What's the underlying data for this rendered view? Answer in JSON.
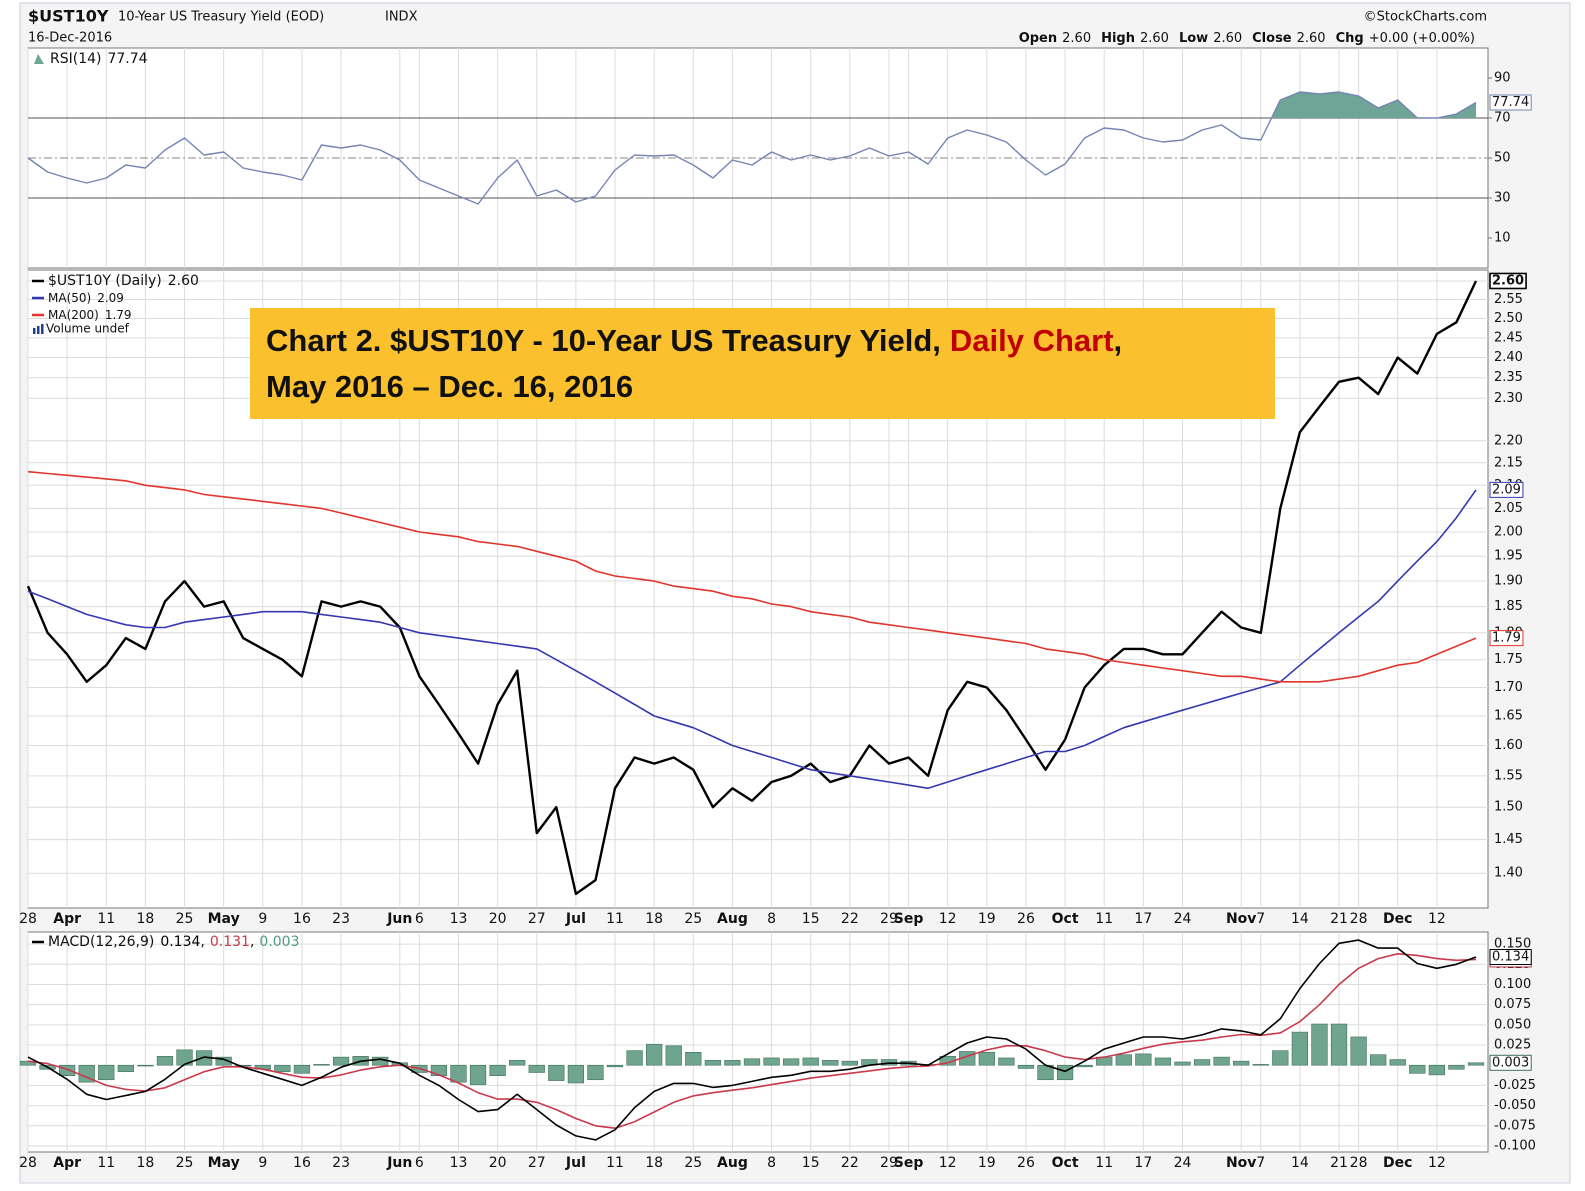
{
  "header": {
    "symbol": "$UST10Y",
    "name": "10-Year US Treasury Yield (EOD)",
    "exchange": "INDX",
    "date": "16-Dec-2016",
    "credit": "©StockCharts.com",
    "quote": [
      {
        "label": "Open",
        "value": "2.60"
      },
      {
        "label": "High",
        "value": "2.60"
      },
      {
        "label": "Low",
        "value": "2.60"
      },
      {
        "label": "Close",
        "value": "2.60"
      },
      {
        "label": "Chg",
        "value": "+0.00 (+0.00%)"
      }
    ]
  },
  "chart_data": [
    {
      "type": "line",
      "ylim": [
        -5,
        105
      ],
      "yticks": [
        10,
        30,
        50,
        70,
        90
      ],
      "reference_lines": [
        {
          "value": 30,
          "style": "solid"
        },
        {
          "value": 50,
          "style": "dashdot"
        },
        {
          "value": 70,
          "style": "solid"
        }
      ],
      "series": [
        {
          "name": "RSI(14)",
          "color": "#7484b4",
          "fill_above": 70,
          "fill_color": "#6fa596",
          "values": [
            50,
            43,
            40,
            37.5,
            40,
            46.5,
            45,
            54,
            60,
            51.5,
            53,
            45,
            43,
            41.5,
            39,
            56.5,
            55,
            56.5,
            54,
            49,
            39,
            35,
            31,
            27,
            40,
            49,
            31,
            34,
            28,
            31,
            44,
            51.5,
            51,
            51.5,
            46.5,
            40,
            49,
            46.5,
            53,
            49,
            51.5,
            49,
            51,
            55,
            51,
            53,
            47,
            60,
            64,
            61.5,
            58,
            49,
            41.5,
            47,
            60,
            65,
            64,
            60,
            58,
            59,
            64,
            66.5,
            60,
            59,
            79,
            83,
            82,
            83,
            81,
            75,
            79,
            70,
            70,
            72,
            77.74
          ]
        }
      ]
    },
    {
      "type": "line",
      "log_scale": true,
      "grid": true,
      "ylim": [
        1.35,
        2.63
      ],
      "yticks": [
        {
          "value": 1.4,
          "label": "1.40"
        },
        1.45,
        {
          "value": 1.5,
          "label": "1.50"
        },
        1.55,
        {
          "value": 1.6,
          "label": "1.60"
        },
        1.65,
        {
          "value": 1.7,
          "label": "1.70"
        },
        1.75,
        {
          "value": 1.8,
          "label": "1.80"
        },
        1.85,
        {
          "value": 1.9,
          "label": "1.90"
        },
        1.95,
        {
          "value": 2,
          "label": "2.00"
        },
        2.05,
        {
          "value": 2.1,
          "label": "2.10"
        },
        2.15,
        {
          "value": 2.2,
          "label": "2.20"
        },
        {
          "value": 2.3,
          "label": "2.30"
        },
        2.35,
        {
          "value": 2.4,
          "label": "2.40"
        },
        2.45,
        {
          "value": 2.5,
          "label": "2.50"
        },
        2.55,
        {
          "value": 2.6,
          "label": "2.60"
        }
      ],
      "categories": [
        "28",
        null,
        "Apr",
        null,
        "11",
        null,
        "18",
        null,
        "25",
        null,
        "May",
        null,
        "9",
        null,
        "16",
        null,
        "23",
        null,
        null,
        "Jun",
        "6",
        null,
        "13",
        null,
        "20",
        null,
        "27",
        null,
        "Jul",
        null,
        "11",
        null,
        "18",
        null,
        "25",
        null,
        "Aug",
        null,
        "8",
        null,
        "15",
        null,
        "22",
        null,
        "29",
        "Sep",
        null,
        "12",
        null,
        "19",
        null,
        "26",
        null,
        "Oct",
        null,
        "11",
        null,
        "17",
        null,
        "24",
        null,
        null,
        "Nov",
        "7",
        null,
        "14",
        null,
        "21",
        "28",
        null,
        "Dec",
        null,
        "12",
        null,
        null
      ],
      "series": [
        {
          "name": "$UST10Y (Daily)",
          "color": "#000000",
          "last_label": "2.60",
          "values": [
            1.89,
            1.8,
            1.76,
            1.71,
            1.74,
            1.79,
            1.77,
            1.86,
            1.9,
            1.85,
            1.86,
            1.79,
            1.77,
            1.75,
            1.72,
            1.86,
            1.85,
            1.86,
            1.85,
            1.81,
            1.72,
            1.67,
            1.62,
            1.57,
            1.67,
            1.73,
            1.46,
            1.5,
            1.37,
            1.39,
            1.53,
            1.58,
            1.57,
            1.58,
            1.56,
            1.5,
            1.53,
            1.51,
            1.54,
            1.55,
            1.57,
            1.54,
            1.55,
            1.6,
            1.57,
            1.58,
            1.55,
            1.66,
            1.71,
            1.7,
            1.66,
            1.61,
            1.56,
            1.61,
            1.7,
            1.74,
            1.77,
            1.77,
            1.76,
            1.76,
            1.8,
            1.84,
            1.81,
            1.8,
            2.05,
            2.22,
            2.28,
            2.34,
            2.35,
            2.31,
            2.4,
            2.36,
            2.46,
            2.49,
            2.6
          ]
        },
        {
          "name": "MA(50)",
          "color": "#3438b0",
          "values": [
            1.88,
            1.865,
            1.85,
            1.835,
            1.825,
            1.815,
            1.81,
            1.81,
            1.82,
            1.825,
            1.83,
            1.835,
            1.84,
            1.84,
            1.84,
            1.835,
            1.83,
            1.825,
            1.82,
            1.81,
            1.8,
            1.795,
            1.79,
            1.785,
            1.78,
            1.775,
            1.77,
            1.75,
            1.73,
            1.71,
            1.69,
            1.67,
            1.65,
            1.64,
            1.63,
            1.615,
            1.6,
            1.59,
            1.58,
            1.57,
            1.56,
            1.555,
            1.55,
            1.545,
            1.54,
            1.535,
            1.53,
            1.54,
            1.55,
            1.56,
            1.57,
            1.58,
            1.59,
            1.59,
            1.6,
            1.615,
            1.63,
            1.64,
            1.65,
            1.66,
            1.67,
            1.68,
            1.69,
            1.7,
            1.71,
            1.74,
            1.77,
            1.8,
            1.83,
            1.86,
            1.9,
            1.94,
            1.98,
            2.03,
            2.09
          ]
        },
        {
          "name": "MA(200)",
          "color": "#e0362c",
          "values": [
            2.13,
            2.126,
            2.122,
            2.118,
            2.114,
            2.11,
            2.1,
            2.095,
            2.09,
            2.08,
            2.075,
            2.07,
            2.065,
            2.06,
            2.055,
            2.05,
            2.04,
            2.03,
            2.02,
            2.01,
            2.0,
            1.995,
            1.99,
            1.98,
            1.975,
            1.97,
            1.96,
            1.95,
            1.94,
            1.92,
            1.91,
            1.905,
            1.9,
            1.89,
            1.885,
            1.88,
            1.87,
            1.865,
            1.855,
            1.85,
            1.84,
            1.835,
            1.83,
            1.82,
            1.815,
            1.81,
            1.805,
            1.8,
            1.795,
            1.79,
            1.785,
            1.78,
            1.77,
            1.765,
            1.76,
            1.75,
            1.745,
            1.74,
            1.735,
            1.73,
            1.725,
            1.72,
            1.72,
            1.715,
            1.71,
            1.71,
            1.71,
            1.715,
            1.72,
            1.73,
            1.74,
            1.745,
            1.76,
            1.775,
            1.79
          ]
        }
      ],
      "volume_legend": "Volume undef",
      "annotation": {
        "line1": "Chart 2. $UST10Y - 10-Year US Treasury Yield,",
        "highlight": "Daily Chart",
        "after": ",",
        "line2": "May 2016 – Dec. 16, 2016"
      }
    },
    {
      "type": "macd",
      "grid": true,
      "legend": "MACD(12,26,9)",
      "legend_separator": ",",
      "ylim": [
        -0.1075,
        0.165
      ],
      "yticks": [
        {
          "value": -0.1,
          "label": "-0.100"
        },
        -0.075,
        {
          "value": -0.05,
          "label": "-0.050"
        },
        -0.025,
        0.025,
        {
          "value": 0.05,
          "label": "0.050"
        },
        0.075,
        {
          "value": 0.1,
          "label": "0.100"
        },
        {
          "value": 0.125,
          "label": "0.125"
        },
        {
          "value": 0.15,
          "label": "0.150"
        }
      ],
      "categories": [
        "28",
        null,
        "Apr",
        null,
        "11",
        null,
        "18",
        null,
        "25",
        null,
        "May",
        null,
        "9",
        null,
        "16",
        null,
        "23",
        null,
        null,
        "Jun",
        "6",
        null,
        "13",
        null,
        "20",
        null,
        "27",
        null,
        "Jul",
        null,
        "11",
        null,
        "18",
        null,
        "25",
        null,
        "Aug",
        null,
        "8",
        null,
        "15",
        null,
        "22",
        null,
        "29",
        "Sep",
        null,
        "12",
        null,
        "19",
        null,
        "26",
        null,
        "Oct",
        null,
        "11",
        null,
        "17",
        null,
        "24",
        null,
        null,
        "Nov",
        "7",
        null,
        "14",
        null,
        "21",
        "28",
        null,
        "Dec",
        null,
        "12",
        null,
        null
      ],
      "series": [
        {
          "color": "#6fa58f",
          "style": "histogram",
          "values": [
            0.005,
            -0.005,
            -0.013,
            -0.021,
            -0.018,
            -0.008,
            -0.001,
            0.011,
            0.019,
            0.018,
            0.01,
            -0.001,
            -0.005,
            -0.008,
            -0.01,
            0.001,
            0.01,
            0.011,
            0.01,
            0.003,
            -0.009,
            -0.013,
            -0.021,
            -0.024,
            -0.013,
            0.006,
            -0.009,
            -0.019,
            -0.022,
            -0.018,
            -0.002,
            0.018,
            0.026,
            0.024,
            0.016,
            0.006,
            0.006,
            0.008,
            0.009,
            0.008,
            0.009,
            0.006,
            0.005,
            0.007,
            0.007,
            0.005,
            0.001,
            0.011,
            0.017,
            0.016,
            0.009,
            -0.004,
            -0.018,
            -0.018,
            -0.002,
            0.01,
            0.013,
            0.014,
            0.009,
            0.004,
            0.007,
            0.01,
            0.005,
            0.001,
            0.018,
            0.041,
            0.051,
            0.051,
            0.035,
            0.013,
            0.007,
            -0.01,
            -0.012,
            -0.005,
            0.003
          ]
        },
        {
          "color": "#c83a4c",
          "values": [
            0.005,
            0.002,
            -0.005,
            -0.015,
            -0.025,
            -0.03,
            -0.032,
            -0.028,
            -0.018,
            -0.008,
            -0.002,
            -0.002,
            -0.005,
            -0.01,
            -0.015,
            -0.016,
            -0.012,
            -0.006,
            -0.002,
            0,
            -0.004,
            -0.012,
            -0.022,
            -0.034,
            -0.042,
            -0.042,
            -0.046,
            -0.055,
            -0.066,
            -0.075,
            -0.078,
            -0.07,
            -0.058,
            -0.046,
            -0.038,
            -0.034,
            -0.031,
            -0.028,
            -0.024,
            -0.02,
            -0.016,
            -0.013,
            -0.01,
            -0.007,
            -0.004,
            -0.002,
            -0.001,
            0.003,
            0.011,
            0.019,
            0.024,
            0.024,
            0.018,
            0.01,
            0.007,
            0.01,
            0.015,
            0.021,
            0.026,
            0.029,
            0.031,
            0.035,
            0.038,
            0.037,
            0.04,
            0.054,
            0.075,
            0.1,
            0.12,
            0.132,
            0.138,
            0.136,
            0.132,
            0.13,
            0.131
          ]
        },
        {
          "color": "#000000",
          "values": [
            0.01,
            -0.0025,
            -0.0175,
            -0.036,
            -0.0425,
            -0.0375,
            -0.0325,
            -0.0175,
            0.001,
            0.01,
            0.0075,
            -0.0025,
            -0.01,
            -0.0175,
            -0.025,
            -0.015,
            -0.0025,
            0.005,
            0.0075,
            0.0025,
            -0.0125,
            -0.025,
            -0.0425,
            -0.0575,
            -0.055,
            -0.036,
            -0.055,
            -0.074,
            -0.0875,
            -0.0925,
            -0.08,
            -0.0525,
            -0.0325,
            -0.0225,
            -0.0225,
            -0.0275,
            -0.025,
            -0.02,
            -0.015,
            -0.0125,
            -0.0075,
            -0.0075,
            -0.005,
            0,
            0.0025,
            0.0025,
            0,
            0.014,
            0.0275,
            0.035,
            0.0325,
            0.02,
            0,
            -0.0075,
            0.005,
            0.02,
            0.0275,
            0.035,
            0.035,
            0.0325,
            0.0375,
            0.045,
            0.0425,
            0.0375,
            0.0575,
            0.095,
            0.126,
            0.151,
            0.155,
            0.145,
            0.145,
            0.126,
            0.12,
            0.125,
            0.134
          ]
        }
      ]
    }
  ]
}
